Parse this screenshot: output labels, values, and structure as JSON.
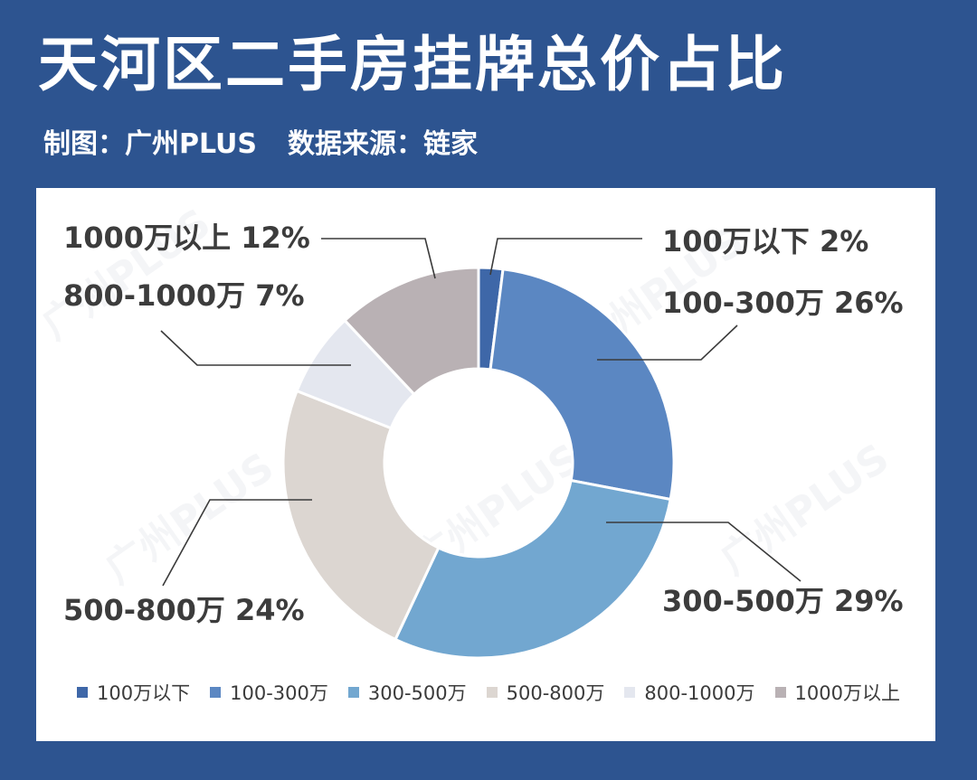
{
  "title": "天河区二手房挂牌总价占比",
  "subtitle": {
    "maker": "制图：广州PLUS",
    "source": "数据来源：链家"
  },
  "watermark": "广州PLUS",
  "chart_data": {
    "type": "pie",
    "donut": true,
    "categories": [
      "100万以下",
      "100-300万",
      "300-500万",
      "500-800万",
      "800-1000万",
      "1000万以上"
    ],
    "values": [
      2,
      26,
      29,
      24,
      7,
      12
    ],
    "labels": [
      "100万以下 2%",
      "100-300万 26%",
      "300-500万 29%",
      "500-800万 24%",
      "800-1000万 7%",
      "1000万以上 12%"
    ],
    "colors": [
      "#3e67a8",
      "#5b87c2",
      "#72a7d0",
      "#dcd6d1",
      "#e4e7ef",
      "#b9b1b4"
    ],
    "legend_position": "bottom"
  }
}
